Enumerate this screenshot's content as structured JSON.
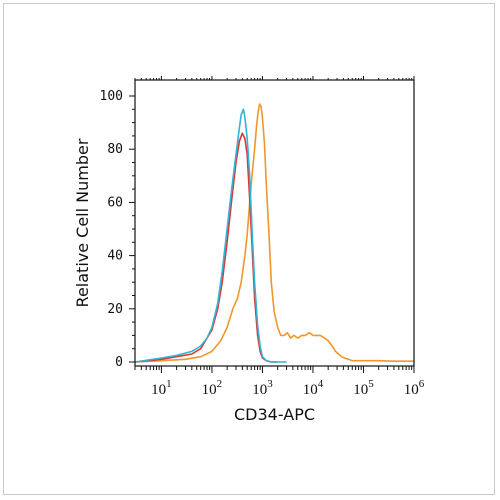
{
  "chart_data": {
    "type": "line",
    "title": "",
    "xlabel": "CD34-APC",
    "ylabel": "Relative Cell Number",
    "x_scale": "log",
    "xlim": [
      3,
      1000000
    ],
    "ylim": [
      0,
      100
    ],
    "grid": false,
    "legend": "none",
    "xticks": [
      {
        "value": 10,
        "base": "10",
        "exp": "1"
      },
      {
        "value": 100,
        "base": "10",
        "exp": "2"
      },
      {
        "value": 1000,
        "base": "10",
        "exp": "3"
      },
      {
        "value": 10000,
        "base": "10",
        "exp": "4"
      },
      {
        "value": 100000,
        "base": "10",
        "exp": "5"
      },
      {
        "value": 1000000,
        "base": "10",
        "exp": "6"
      }
    ],
    "yticks": [
      "0",
      "20",
      "40",
      "60",
      "80",
      "100"
    ],
    "series": [
      {
        "color": "#f0962a",
        "x": [
          3,
          10,
          30,
          60,
          100,
          150,
          200,
          260,
          320,
          380,
          450,
          500,
          550,
          620,
          700,
          760,
          820,
          880,
          940,
          1000,
          1100,
          1200,
          1350,
          1500,
          1700,
          2000,
          2300,
          2700,
          3100,
          3600,
          4200,
          5000,
          6000,
          7000,
          8500,
          10000,
          12000,
          14000,
          17000,
          20000,
          24000,
          28000,
          32000,
          37000,
          42000,
          50000,
          60000,
          80000,
          120000,
          200000,
          400000,
          1000000
        ],
        "y": [
          0,
          0.5,
          1,
          2,
          4,
          8,
          13,
          20,
          24,
          30,
          40,
          48,
          58,
          70,
          80,
          88,
          94,
          97,
          96,
          92,
          82,
          66,
          48,
          30,
          19,
          13,
          10,
          10,
          11,
          9,
          10,
          9,
          10,
          10,
          11,
          10,
          10,
          10,
          9,
          8,
          6,
          4,
          3,
          2,
          1.5,
          1,
          0.5,
          0.5,
          0.5,
          0.5,
          0.3,
          0.3
        ]
      },
      {
        "color": "#d9383a",
        "x": [
          3,
          10,
          20,
          40,
          60,
          80,
          100,
          130,
          160,
          200,
          250,
          300,
          350,
          400,
          450,
          500,
          550,
          620,
          700,
          800,
          900,
          1000,
          1200,
          1500,
          2000
        ],
        "y": [
          0,
          1,
          2,
          3,
          5,
          9,
          12,
          20,
          30,
          45,
          62,
          75,
          83,
          86,
          84,
          78,
          64,
          44,
          24,
          10,
          4,
          1.5,
          0.5,
          0,
          0
        ]
      },
      {
        "color": "#2fb5d6",
        "x": [
          3,
          10,
          20,
          40,
          60,
          80,
          100,
          130,
          160,
          200,
          250,
          300,
          350,
          380,
          420,
          450,
          500,
          560,
          620,
          700,
          800,
          900,
          1000,
          1200,
          1500,
          2000,
          2500,
          3000
        ],
        "y": [
          0,
          1.5,
          2.5,
          4,
          6,
          9,
          13,
          22,
          34,
          50,
          66,
          78,
          88,
          93,
          95,
          92,
          84,
          70,
          50,
          30,
          14,
          6,
          2,
          0.5,
          0,
          0,
          0,
          0
        ]
      }
    ]
  }
}
